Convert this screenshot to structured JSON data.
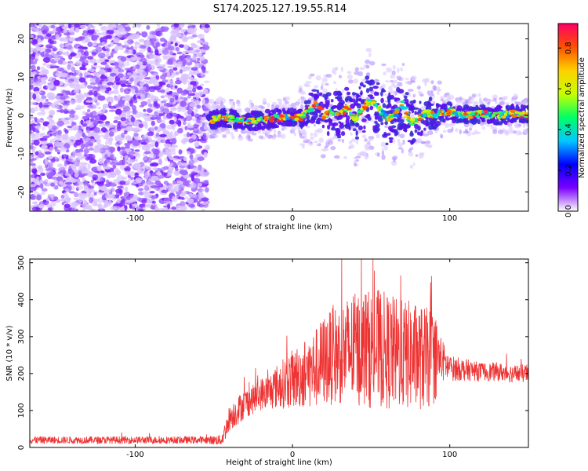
{
  "title": "S174.2025.127.19.55.R14",
  "spectrogram": {
    "xlabel": "Height of straight line (km)",
    "ylabel": "Frequency (Hz)",
    "xlim": [
      -167,
      150
    ],
    "ylim": [
      -25,
      24
    ],
    "xticks": [
      -100,
      0,
      100
    ],
    "yticks": [
      -20,
      -10,
      0,
      10,
      20
    ],
    "colorbar": {
      "label": "Normalized spectral amplitude",
      "range": [
        0,
        0.92
      ],
      "ticks": [
        "0.0",
        "0.2",
        "0.4",
        "0.6",
        "0.8"
      ],
      "colormap": [
        "#ffffff",
        "#7a00ff",
        "#0000ff",
        "#00c8ff",
        "#00ff66",
        "#c8ff00",
        "#ffd000",
        "#ff5000",
        "#ff0066"
      ]
    },
    "noise_region_end_km": -54,
    "ridge": {
      "x": [
        -54,
        -45,
        -35,
        -25,
        -15,
        -5,
        5,
        10,
        15,
        20,
        25,
        30,
        35,
        40,
        45,
        50,
        55,
        60,
        65,
        70,
        75,
        80,
        85,
        90,
        100,
        110,
        120,
        130,
        140,
        150
      ],
      "y": [
        -1.5,
        -0.5,
        -1,
        -1.5,
        -1,
        -0.5,
        -0.5,
        1,
        3,
        0,
        1,
        0,
        2,
        -1,
        2,
        4,
        2,
        -1,
        0,
        3,
        -2,
        -1,
        1,
        0,
        1,
        0,
        0.5,
        0,
        0.5,
        0
      ]
    }
  },
  "chart_data": [
    {
      "type": "heatmap",
      "title": "S174.2025.127.19.55.R14",
      "xlabel": "Height of straight line (km)",
      "ylabel": "Frequency (Hz)",
      "xlim": [
        -167,
        150
      ],
      "ylim": [
        -25,
        24
      ],
      "color_label": "Normalized spectral amplitude",
      "color_range": [
        0,
        0.92
      ]
    },
    {
      "type": "line",
      "xlabel": "Height of straight line (km)",
      "ylabel": "SNR (10 * v/v)",
      "xlim": [
        -167,
        150
      ],
      "ylim": [
        0,
        510
      ],
      "xticks": [
        -100,
        0,
        100
      ],
      "yticks": [
        0,
        100,
        200,
        300,
        400,
        500
      ],
      "color": "#ee3333",
      "x": [
        -167,
        -150,
        -130,
        -110,
        -90,
        -70,
        -55,
        -45,
        -42,
        -40,
        -35,
        -30,
        -25,
        -20,
        -15,
        -10,
        -5,
        0,
        5,
        10,
        15,
        20,
        25,
        30,
        35,
        40,
        45,
        50,
        55,
        60,
        65,
        70,
        75,
        80,
        85,
        90,
        95,
        100,
        110,
        120,
        130,
        140,
        150
      ],
      "y": [
        20,
        20,
        20,
        20,
        20,
        20,
        20,
        20,
        55,
        80,
        100,
        120,
        130,
        145,
        150,
        165,
        175,
        185,
        195,
        205,
        215,
        235,
        245,
        255,
        260,
        265,
        270,
        265,
        270,
        260,
        255,
        250,
        250,
        245,
        240,
        245,
        235,
        215,
        210,
        205,
        205,
        200,
        200
      ],
      "spread": [
        10,
        10,
        10,
        10,
        10,
        10,
        10,
        15,
        30,
        35,
        40,
        40,
        40,
        45,
        50,
        60,
        70,
        80,
        90,
        100,
        110,
        125,
        130,
        140,
        150,
        155,
        160,
        160,
        160,
        160,
        155,
        150,
        150,
        145,
        140,
        130,
        60,
        35,
        30,
        25,
        25,
        25,
        25
      ]
    }
  ]
}
